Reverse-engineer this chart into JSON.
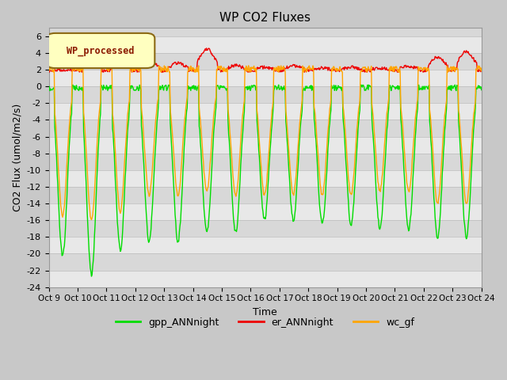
{
  "title": "WP CO2 Fluxes",
  "xlabel": "Time",
  "ylabel": "CO2 Flux (umol/m2/s)",
  "ylim": [
    -24,
    7
  ],
  "yticks": [
    -24,
    -22,
    -20,
    -18,
    -16,
    -14,
    -12,
    -10,
    -8,
    -6,
    -4,
    -2,
    0,
    2,
    4,
    6
  ],
  "fig_bg_color": "#c8c8c8",
  "plot_bg_color": "#d8d8d8",
  "band_color": "#e8e8e8",
  "legend_label": "WP_processed",
  "legend_text_color": "#8b1a00",
  "legend_bg_color": "#ffffc0",
  "legend_edge_color": "#8b6914",
  "lines": {
    "gpp_ANNnight": {
      "color": "#00dd00",
      "label": "gpp_ANNnight",
      "linewidth": 1.0
    },
    "er_ANNnight": {
      "color": "#ee0000",
      "label": "er_ANNnight",
      "linewidth": 1.0
    },
    "wc_gf": {
      "color": "#ffa500",
      "label": "wc_gf",
      "linewidth": 1.0
    }
  },
  "n_days": 15,
  "points_per_day": 48,
  "xtick_labels": [
    "Oct 9",
    "Oct 10",
    "Oct 11",
    "Oct 12",
    "Oct 13",
    "Oct 14",
    "Oct 15",
    "Oct 16",
    "Oct 17",
    "Oct 18",
    "Oct 19",
    "Oct 20",
    "Oct 21",
    "Oct 22",
    "Oct 23",
    "Oct 24"
  ],
  "gpp_depths": [
    -20.3,
    -22.5,
    -19.5,
    -18.5,
    -18.5,
    -17.5,
    -17.5,
    -16.0,
    -16.0,
    -16.5,
    -16.5,
    -17.0,
    -17.0,
    -18.0,
    -18.0
  ],
  "wc_depths": [
    -15.5,
    -16.0,
    -15.0,
    -13.0,
    -13.0,
    -12.5,
    -13.0,
    -13.0,
    -13.0,
    -13.0,
    -13.0,
    -12.5,
    -12.5,
    -14.0,
    -14.0
  ],
  "er_peaks": [
    2.0,
    3.8,
    3.2,
    3.0,
    2.8,
    4.5,
    2.5,
    2.3,
    2.5,
    2.2,
    2.3,
    2.2,
    2.4,
    3.5,
    4.2
  ]
}
